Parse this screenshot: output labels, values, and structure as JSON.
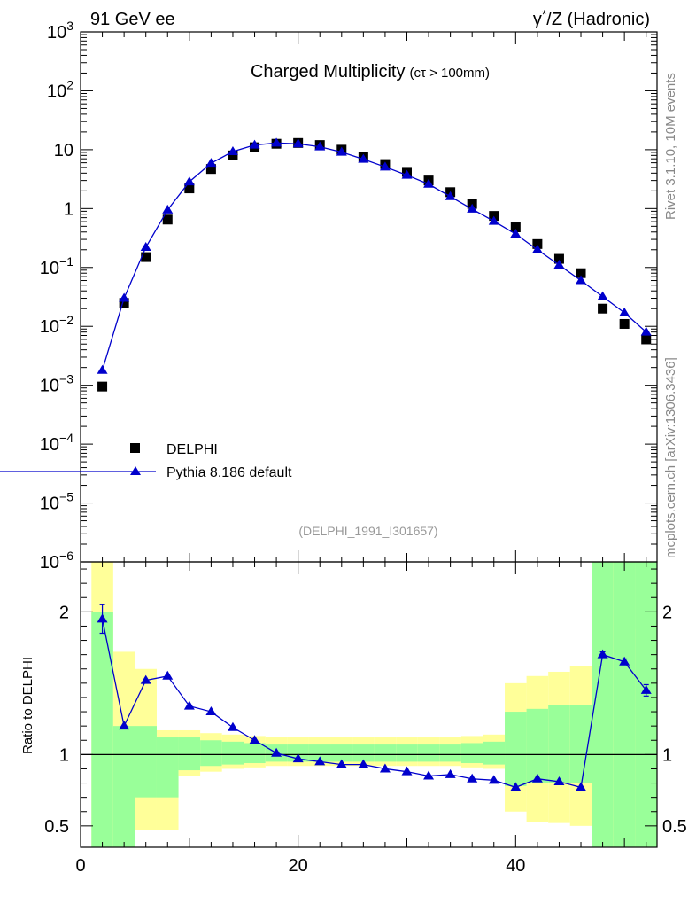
{
  "header": {
    "left_label": "91 GeV ee",
    "right_label_prefix": "γ",
    "right_label_sup": "*",
    "right_label_suffix": "/Z (Hadronic)"
  },
  "side_labels": {
    "rivet": "Rivet 3.1.10,  10M events",
    "mcplots": "mcplots.cern.ch [arXiv:1306.3436]"
  },
  "chart_data": [
    {
      "type": "scatter",
      "title": "Charged Multiplicity",
      "title_suffix": "(cτ > 100mm)",
      "analysis_tag": "(DELPHI_1991_I301657)",
      "xlabel": "",
      "ylabel": "",
      "xlim": [
        0,
        53
      ],
      "ylim": [
        1e-06,
        1000
      ],
      "yscale": "log",
      "y_ticks": [
        {
          "value": 1000,
          "base": "10",
          "exp": "3"
        },
        {
          "value": 100,
          "base": "10",
          "exp": "2"
        },
        {
          "value": 10,
          "base": "10",
          "exp": ""
        },
        {
          "value": 1,
          "base": "1",
          "exp": ""
        },
        {
          "value": 0.1,
          "base": "10",
          "exp": "−1"
        },
        {
          "value": 0.01,
          "base": "10",
          "exp": "−2"
        },
        {
          "value": 0.001,
          "base": "10",
          "exp": "−3"
        },
        {
          "value": 0.0001,
          "base": "10",
          "exp": "−4"
        },
        {
          "value": 1e-05,
          "base": "10",
          "exp": "−5"
        },
        {
          "value": 1e-06,
          "base": "10",
          "exp": "−6"
        }
      ],
      "legend_placement": "lower-left",
      "series": [
        {
          "name": "DELPHI",
          "marker": "square",
          "color": "#000000",
          "x": [
            2,
            4,
            6,
            8,
            10,
            12,
            14,
            16,
            18,
            20,
            22,
            24,
            26,
            28,
            30,
            32,
            34,
            36,
            38,
            40,
            42,
            44,
            46,
            48,
            50,
            52
          ],
          "y": [
            0.00095,
            0.025,
            0.15,
            0.65,
            2.2,
            4.7,
            8.0,
            11.0,
            12.6,
            13.0,
            12.0,
            10.0,
            7.5,
            5.7,
            4.2,
            3.0,
            1.9,
            1.2,
            0.75,
            0.48,
            0.25,
            0.14,
            0.08,
            0.02,
            0.011,
            0.006
          ]
        },
        {
          "name": "Pythia 8.186 default",
          "marker": "triangle",
          "color": "#0000cc",
          "x": [
            2,
            4,
            6,
            8,
            10,
            12,
            14,
            16,
            18,
            20,
            22,
            24,
            26,
            28,
            30,
            32,
            34,
            36,
            38,
            40,
            42,
            44,
            46,
            48,
            50,
            52
          ],
          "y": [
            0.0018,
            0.03,
            0.22,
            0.95,
            2.85,
            5.9,
            9.3,
            12.0,
            13.0,
            12.6,
            11.2,
            9.1,
            6.9,
            5.1,
            3.7,
            2.6,
            1.6,
            0.98,
            0.61,
            0.37,
            0.2,
            0.11,
            0.06,
            0.032,
            0.017,
            0.008
          ]
        }
      ]
    },
    {
      "type": "scatter",
      "title": "",
      "xlabel": "",
      "ylabel": "Ratio to DELPHI",
      "xlim": [
        0,
        53
      ],
      "ylim": [
        0.35,
        2.35
      ],
      "x_ticks": [
        "0",
        "20",
        "40"
      ],
      "y_ticks": [
        "0.5",
        "1",
        "2"
      ],
      "reference_line": 1,
      "bands": {
        "edges": [
          1,
          3,
          5,
          7,
          9,
          11,
          13,
          15,
          17,
          19,
          21,
          23,
          25,
          27,
          29,
          31,
          33,
          35,
          37,
          39,
          41,
          43,
          45,
          47,
          49,
          51,
          53
        ],
        "green_low": [
          0.35,
          0.35,
          0.7,
          0.7,
          0.89,
          0.92,
          0.93,
          0.94,
          0.95,
          0.95,
          0.95,
          0.95,
          0.95,
          0.95,
          0.95,
          0.95,
          0.95,
          0.94,
          0.93,
          0.78,
          0.8,
          0.8,
          0.8,
          0.35,
          0.35,
          0.35
        ],
        "green_high": [
          2.0,
          1.2,
          1.2,
          1.12,
          1.12,
          1.1,
          1.09,
          1.08,
          1.07,
          1.07,
          1.07,
          1.07,
          1.07,
          1.07,
          1.07,
          1.07,
          1.07,
          1.08,
          1.09,
          1.3,
          1.32,
          1.35,
          1.35,
          2.35,
          2.35,
          2.35
        ],
        "yellow_low": [
          0.35,
          0.35,
          0.47,
          0.47,
          0.85,
          0.88,
          0.9,
          0.91,
          0.92,
          0.92,
          0.92,
          0.92,
          0.92,
          0.92,
          0.92,
          0.92,
          0.92,
          0.91,
          0.9,
          0.6,
          0.53,
          0.52,
          0.5,
          0.35,
          0.35,
          0.35
        ],
        "yellow_high": [
          2.35,
          1.72,
          1.6,
          1.17,
          1.17,
          1.15,
          1.14,
          1.13,
          1.12,
          1.12,
          1.12,
          1.12,
          1.12,
          1.12,
          1.12,
          1.12,
          1.12,
          1.13,
          1.14,
          1.5,
          1.55,
          1.58,
          1.62,
          2.35,
          2.35,
          1.88
        ],
        "green_color": "#99ff99",
        "yellow_color": "#ffff99"
      },
      "series": [
        {
          "name": "Pythia 8.186 default",
          "marker": "triangle",
          "color": "#0000cc",
          "x": [
            2,
            4,
            6,
            8,
            10,
            12,
            14,
            16,
            18,
            20,
            22,
            24,
            26,
            28,
            30,
            32,
            34,
            36,
            38,
            40,
            42,
            44,
            46,
            48,
            50,
            52
          ],
          "y": [
            1.95,
            1.2,
            1.52,
            1.55,
            1.34,
            1.3,
            1.19,
            1.1,
            1.01,
            0.97,
            0.95,
            0.93,
            0.93,
            0.9,
            0.88,
            0.85,
            0.86,
            0.83,
            0.82,
            0.77,
            0.83,
            0.81,
            0.77,
            1.7,
            1.65,
            1.45
          ],
          "err": [
            0.1,
            0.01,
            0.01,
            0.01,
            0.01,
            0.01,
            0.01,
            0.01,
            0.01,
            0.01,
            0.01,
            0.01,
            0.01,
            0.01,
            0.01,
            0.01,
            0.01,
            0.01,
            0.01,
            0.01,
            0.01,
            0.01,
            0.01,
            0.02,
            0.02,
            0.04
          ]
        }
      ]
    }
  ]
}
